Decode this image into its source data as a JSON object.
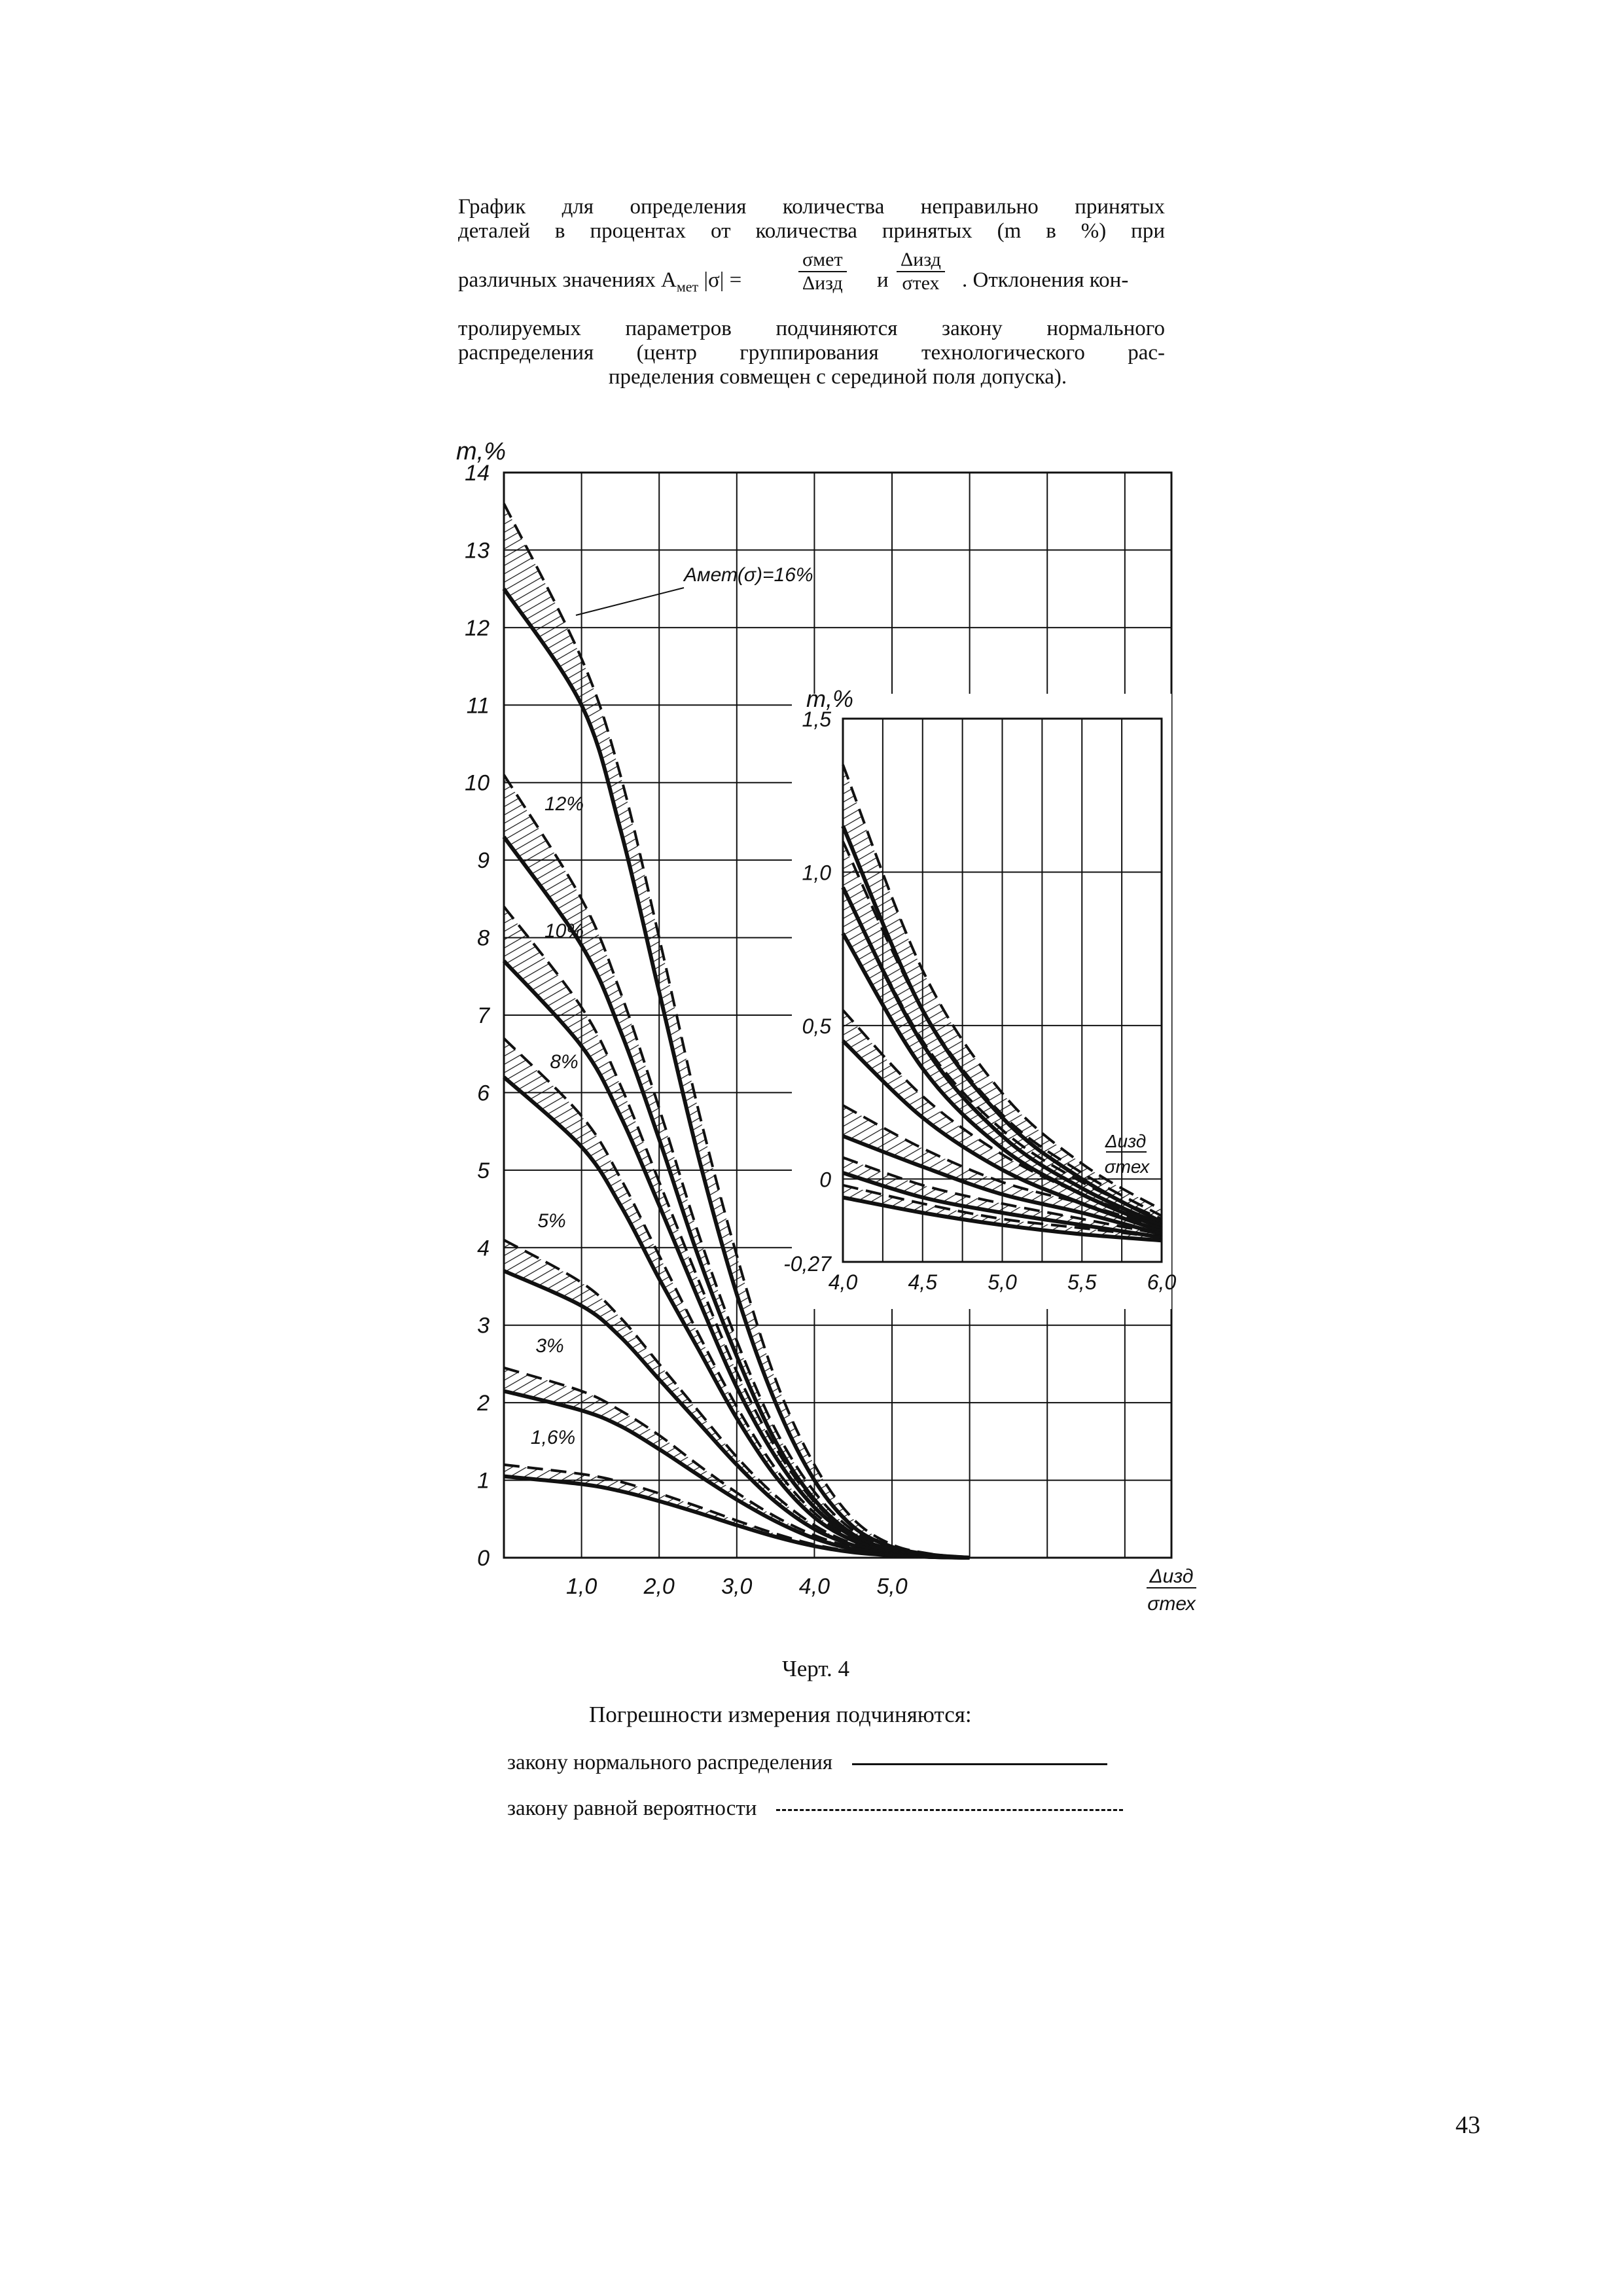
{
  "caption": {
    "line1": "График для определения количества неправильно принятых",
    "line2": "деталей в процентах от количества принятых (m в %) при",
    "line3_a": "различных значениях A",
    "line3_sub": "мет",
    "line3_b": "|σ| =",
    "frac1_num": "σмет",
    "frac1_den": "Δизд",
    "line3_and": "и",
    "frac2_num": "Δизд",
    "frac2_den": "σтех",
    "line3_c": ". Отклонения кон-",
    "line4": "тролируемых параметров подчиняются закону нормального",
    "line5": "распределения (центр группирования технологического рас-",
    "line6": "пределения совмещен с серединой поля допуска)."
  },
  "figure": {
    "label": "Черт. 4",
    "legend_title": "Погрешности измерения подчиняются:",
    "legend_normal": "закону нормального распределения",
    "legend_uniform": "закону равной вероятности"
  },
  "page_number": "43",
  "chart_data": [
    {
      "type": "line",
      "ylabel": "m,%",
      "xlabel": "Δизд / σтех",
      "xlim": [
        0,
        8.6
      ],
      "ylim": [
        0,
        14
      ],
      "x_ticks": [
        "1,0",
        "2,0",
        "3,0",
        "4,0",
        "5,0"
      ],
      "y_ticks": [
        "0",
        "1",
        "2",
        "3",
        "4",
        "5",
        "6",
        "7",
        "8",
        "9",
        "10",
        "11",
        "12",
        "13",
        "14"
      ],
      "grid": true,
      "series": [
        {
          "name": "Aмет(σ)=16%",
          "normal": [
            [
              0,
              12.5
            ],
            [
              1,
              11
            ],
            [
              1.5,
              9.4
            ],
            [
              2,
              7.3
            ],
            [
              2.5,
              5.2
            ],
            [
              3,
              3.4
            ],
            [
              3.5,
              2
            ],
            [
              4,
              1
            ],
            [
              4.5,
              0.4
            ],
            [
              5,
              0.14
            ],
            [
              5.5,
              0.04
            ],
            [
              6,
              0
            ]
          ],
          "uniform": [
            [
              0,
              13.6
            ],
            [
              1,
              11.6
            ],
            [
              1.5,
              10.1
            ],
            [
              2,
              8
            ],
            [
              2.5,
              5.8
            ],
            [
              3,
              3.9
            ],
            [
              3.5,
              2.3
            ],
            [
              4,
              1.2
            ],
            [
              4.5,
              0.5
            ],
            [
              5,
              0.17
            ],
            [
              5.5,
              0.05
            ],
            [
              6,
              0
            ]
          ]
        },
        {
          "name": "12%",
          "normal": [
            [
              0,
              9.3
            ],
            [
              1,
              7.9
            ],
            [
              1.5,
              6.8
            ],
            [
              2,
              5.4
            ],
            [
              2.5,
              3.9
            ],
            [
              3,
              2.6
            ],
            [
              3.5,
              1.5
            ],
            [
              4,
              0.75
            ],
            [
              4.5,
              0.3
            ],
            [
              5,
              0.1
            ],
            [
              5.5,
              0.03
            ],
            [
              6,
              0
            ]
          ],
          "uniform": [
            [
              0,
              10.1
            ],
            [
              1,
              8.5
            ],
            [
              1.5,
              7.3
            ],
            [
              2,
              5.8
            ],
            [
              2.5,
              4.2
            ],
            [
              3,
              2.8
            ],
            [
              3.5,
              1.65
            ],
            [
              4,
              0.85
            ],
            [
              4.5,
              0.35
            ],
            [
              5,
              0.12
            ],
            [
              5.5,
              0.03
            ],
            [
              6,
              0
            ]
          ]
        },
        {
          "name": "10%",
          "normal": [
            [
              0,
              7.7
            ],
            [
              1,
              6.6
            ],
            [
              1.5,
              5.7
            ],
            [
              2,
              4.55
            ],
            [
              2.5,
              3.35
            ],
            [
              3,
              2.2
            ],
            [
              3.5,
              1.3
            ],
            [
              4,
              0.65
            ],
            [
              4.5,
              0.27
            ],
            [
              5,
              0.09
            ],
            [
              5.5,
              0.02
            ],
            [
              6,
              0
            ]
          ],
          "uniform": [
            [
              0,
              8.4
            ],
            [
              1,
              7.1
            ],
            [
              1.5,
              6.1
            ],
            [
              2,
              4.85
            ],
            [
              2.5,
              3.6
            ],
            [
              3,
              2.4
            ],
            [
              3.5,
              1.42
            ],
            [
              4,
              0.72
            ],
            [
              4.5,
              0.3
            ],
            [
              5,
              0.1
            ],
            [
              5.5,
              0.03
            ],
            [
              6,
              0
            ]
          ]
        },
        {
          "name": "8%",
          "normal": [
            [
              0,
              6.2
            ],
            [
              1,
              5.3
            ],
            [
              1.5,
              4.55
            ],
            [
              2,
              3.6
            ],
            [
              2.5,
              2.7
            ],
            [
              3,
              1.8
            ],
            [
              3.5,
              1.05
            ],
            [
              4,
              0.52
            ],
            [
              4.5,
              0.22
            ],
            [
              5,
              0.07
            ],
            [
              5.5,
              0.02
            ],
            [
              6,
              0
            ]
          ],
          "uniform": [
            [
              0,
              6.7
            ],
            [
              1,
              5.7
            ],
            [
              1.5,
              4.9
            ],
            [
              2,
              3.9
            ],
            [
              2.5,
              2.9
            ],
            [
              3,
              1.95
            ],
            [
              3.5,
              1.15
            ],
            [
              4,
              0.58
            ],
            [
              4.5,
              0.24
            ],
            [
              5,
              0.08
            ],
            [
              5.5,
              0.02
            ],
            [
              6,
              0
            ]
          ]
        },
        {
          "name": "5%",
          "normal": [
            [
              0,
              3.7
            ],
            [
              1,
              3.25
            ],
            [
              1.5,
              2.85
            ],
            [
              2,
              2.3
            ],
            [
              2.5,
              1.75
            ],
            [
              3,
              1.2
            ],
            [
              3.5,
              0.72
            ],
            [
              4,
              0.37
            ],
            [
              4.5,
              0.16
            ],
            [
              5,
              0.05
            ],
            [
              5.5,
              0.01
            ],
            [
              6,
              0
            ]
          ],
          "uniform": [
            [
              0,
              4.1
            ],
            [
              1,
              3.55
            ],
            [
              1.5,
              3.1
            ],
            [
              2,
              2.5
            ],
            [
              2.5,
              1.9
            ],
            [
              3,
              1.3
            ],
            [
              3.5,
              0.8
            ],
            [
              4,
              0.42
            ],
            [
              4.5,
              0.18
            ],
            [
              5,
              0.06
            ],
            [
              5.5,
              0.02
            ],
            [
              6,
              0
            ]
          ]
        },
        {
          "name": "3%",
          "normal": [
            [
              0,
              2.15
            ],
            [
              1,
              1.9
            ],
            [
              1.5,
              1.7
            ],
            [
              2,
              1.4
            ],
            [
              2.5,
              1.07
            ],
            [
              3,
              0.75
            ],
            [
              3.5,
              0.47
            ],
            [
              4,
              0.25
            ],
            [
              4.5,
              0.11
            ],
            [
              5,
              0.04
            ],
            [
              5.5,
              0.01
            ],
            [
              6,
              0
            ]
          ],
          "uniform": [
            [
              0,
              2.45
            ],
            [
              1,
              2.15
            ],
            [
              1.5,
              1.9
            ],
            [
              2,
              1.58
            ],
            [
              2.5,
              1.2
            ],
            [
              3,
              0.84
            ],
            [
              3.5,
              0.53
            ],
            [
              4,
              0.29
            ],
            [
              4.5,
              0.13
            ],
            [
              5,
              0.05
            ],
            [
              5.5,
              0.01
            ],
            [
              6,
              0
            ]
          ]
        },
        {
          "name": "1,6%",
          "normal": [
            [
              0,
              1.05
            ],
            [
              1,
              0.95
            ],
            [
              1.5,
              0.86
            ],
            [
              2,
              0.73
            ],
            [
              2.5,
              0.58
            ],
            [
              3,
              0.42
            ],
            [
              3.5,
              0.27
            ],
            [
              4,
              0.15
            ],
            [
              4.5,
              0.07
            ],
            [
              5,
              0.03
            ],
            [
              5.5,
              0.01
            ],
            [
              6,
              0
            ]
          ],
          "uniform": [
            [
              0,
              1.2
            ],
            [
              1,
              1.08
            ],
            [
              1.5,
              0.98
            ],
            [
              2,
              0.83
            ],
            [
              2.5,
              0.66
            ],
            [
              3,
              0.48
            ],
            [
              3.5,
              0.31
            ],
            [
              4,
              0.17
            ],
            [
              4.5,
              0.08
            ],
            [
              5,
              0.03
            ],
            [
              5.5,
              0.01
            ],
            [
              6,
              0
            ]
          ]
        }
      ],
      "annotations": [
        "Aмет(σ)=16%",
        "12%",
        "10%",
        "8%",
        "5%",
        "3%",
        "1,6%"
      ]
    },
    {
      "type": "line",
      "ylabel": "m,%",
      "xlabel": "Δизд / σтех",
      "xlim": [
        4.0,
        6.0
      ],
      "ylim": [
        -0.27,
        1.5
      ],
      "x_ticks": [
        "4,0",
        "4,5",
        "5,0",
        "5,5",
        "6,0"
      ],
      "y_ticks": [
        "-0,27",
        "0",
        "0,5",
        "1,0",
        "1,5"
      ],
      "grid": true,
      "series": [
        {
          "name": "16%",
          "normal": [
            [
              4,
              1.15
            ],
            [
              4.5,
              0.55
            ],
            [
              5,
              0.2
            ],
            [
              5.5,
              0.0
            ],
            [
              6,
              -0.14
            ]
          ],
          "uniform": [
            [
              4,
              1.35
            ],
            [
              4.5,
              0.68
            ],
            [
              5,
              0.28
            ],
            [
              5.5,
              0.05
            ],
            [
              6,
              -0.1
            ]
          ]
        },
        {
          "name": "12%",
          "normal": [
            [
              4,
              0.95
            ],
            [
              4.5,
              0.44
            ],
            [
              5,
              0.14
            ],
            [
              5.5,
              -0.03
            ],
            [
              6,
              -0.15
            ]
          ],
          "uniform": [
            [
              4,
              1.1
            ],
            [
              4.5,
              0.55
            ],
            [
              5,
              0.21
            ],
            [
              5.5,
              0.02
            ],
            [
              6,
              -0.12
            ]
          ]
        },
        {
          "name": "10%",
          "normal": [
            [
              4,
              0.8
            ],
            [
              4.5,
              0.36
            ],
            [
              5,
              0.1
            ],
            [
              5.5,
              -0.05
            ],
            [
              6,
              -0.16
            ]
          ],
          "uniform": [
            [
              4,
              0.95
            ],
            [
              4.5,
              0.45
            ],
            [
              5,
              0.16
            ],
            [
              5.5,
              -0.01
            ],
            [
              6,
              -0.13
            ]
          ]
        },
        {
          "name": "8%",
          "normal": [
            [
              4,
              0.45
            ],
            [
              4.5,
              0.2
            ],
            [
              5,
              0.03
            ],
            [
              5.5,
              -0.08
            ],
            [
              6,
              -0.17
            ]
          ],
          "uniform": [
            [
              4,
              0.55
            ],
            [
              4.5,
              0.27
            ],
            [
              5,
              0.08
            ],
            [
              5.5,
              -0.05
            ],
            [
              6,
              -0.15
            ]
          ]
        },
        {
          "name": "5%",
          "normal": [
            [
              4,
              0.14
            ],
            [
              4.5,
              0.04
            ],
            [
              5,
              -0.05
            ],
            [
              5.5,
              -0.11
            ],
            [
              6,
              -0.18
            ]
          ],
          "uniform": [
            [
              4,
              0.24
            ],
            [
              4.5,
              0.1
            ],
            [
              5,
              -0.01
            ],
            [
              5.5,
              -0.08
            ],
            [
              6,
              -0.16
            ]
          ]
        },
        {
          "name": "3%",
          "normal": [
            [
              4,
              0.02
            ],
            [
              4.5,
              -0.06
            ],
            [
              5,
              -0.11
            ],
            [
              5.5,
              -0.15
            ],
            [
              6,
              -0.19
            ]
          ],
          "uniform": [
            [
              4,
              0.07
            ],
            [
              4.5,
              -0.02
            ],
            [
              5,
              -0.08
            ],
            [
              5.5,
              -0.13
            ],
            [
              6,
              -0.18
            ]
          ]
        },
        {
          "name": "1,6%",
          "normal": [
            [
              4,
              -0.06
            ],
            [
              4.5,
              -0.11
            ],
            [
              5,
              -0.15
            ],
            [
              5.5,
              -0.18
            ],
            [
              6,
              -0.2
            ]
          ],
          "uniform": [
            [
              4,
              -0.02
            ],
            [
              4.5,
              -0.08
            ],
            [
              5,
              -0.13
            ],
            [
              5.5,
              -0.16
            ],
            [
              6,
              -0.19
            ]
          ]
        }
      ]
    }
  ]
}
